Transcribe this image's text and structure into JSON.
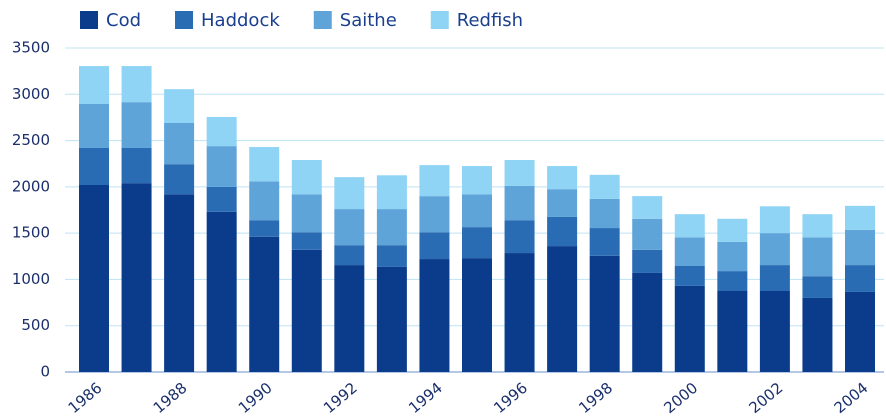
{
  "chart_data": {
    "type": "stacked_bar",
    "categories": [
      "1986",
      null,
      "1988",
      null,
      "1990",
      null,
      "1992",
      null,
      "1994",
      null,
      "1996",
      null,
      "1998",
      null,
      "2000",
      null,
      "2002",
      null,
      "2004"
    ],
    "series": [
      {
        "name": "Cod",
        "color": "#0b3c8c",
        "values": [
          2020,
          2040,
          1920,
          1730,
          1460,
          1320,
          1155,
          1135,
          1220,
          1230,
          1285,
          1360,
          1255,
          1070,
          930,
          875,
          875,
          800,
          865
        ]
      },
      {
        "name": "Haddock",
        "color": "#2a6cb4",
        "values": [
          400,
          380,
          325,
          270,
          180,
          190,
          215,
          235,
          290,
          335,
          355,
          315,
          300,
          250,
          215,
          215,
          280,
          235,
          290
        ]
      },
      {
        "name": "Saithe",
        "color": "#5ea4d9",
        "values": [
          475,
          495,
          445,
          440,
          420,
          410,
          390,
          390,
          390,
          355,
          370,
          300,
          315,
          335,
          310,
          315,
          345,
          420,
          380
        ]
      },
      {
        "name": "Redfish",
        "color": "#8fd4f4",
        "values": [
          410,
          390,
          365,
          315,
          370,
          370,
          345,
          365,
          335,
          305,
          280,
          250,
          260,
          245,
          250,
          250,
          290,
          250,
          260
        ]
      }
    ],
    "ylim": [
      0,
      3500
    ],
    "yticks": [
      0,
      500,
      1000,
      1500,
      2000,
      2500,
      3000,
      3500
    ],
    "grid": true
  }
}
